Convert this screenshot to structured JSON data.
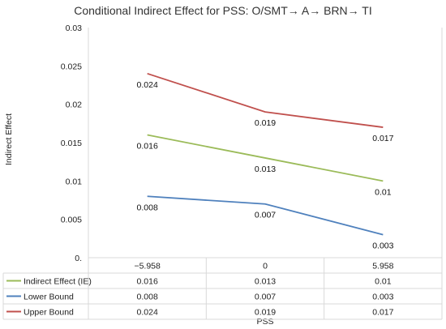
{
  "chart_data": {
    "type": "line",
    "title": "Conditional Indirect Effect for PSS: O/SMT→ A→ BRN→ TI",
    "xlabel": "PSS",
    "ylabel": "Indirect Effect",
    "categories": [
      "−5.958",
      "0",
      "5.958"
    ],
    "ylim": [
      0,
      0.03
    ],
    "y_ticks": [
      "0.",
      "0.005",
      "0.01",
      "0.015",
      "0.02",
      "0.025",
      "0.03"
    ],
    "y_tick_values": [
      0,
      0.005,
      0.01,
      0.015,
      0.02,
      0.025,
      0.03
    ],
    "grid": false,
    "legend": "data-table",
    "series": [
      {
        "name": "Indirect Effect (IE)",
        "values": [
          0.016,
          0.013,
          0.01
        ],
        "labels": [
          "0.016",
          "0.013",
          "0.01"
        ],
        "color": "#9bbb59"
      },
      {
        "name": "Lower Bound",
        "values": [
          0.008,
          0.007,
          0.003
        ],
        "labels": [
          "0.008",
          "0.007",
          "0.003"
        ],
        "color": "#4f81bd"
      },
      {
        "name": "Upper Bound",
        "values": [
          0.024,
          0.019,
          0.017
        ],
        "labels": [
          "0.024",
          "0.019",
          "0.017"
        ],
        "color": "#c0504d"
      }
    ]
  }
}
